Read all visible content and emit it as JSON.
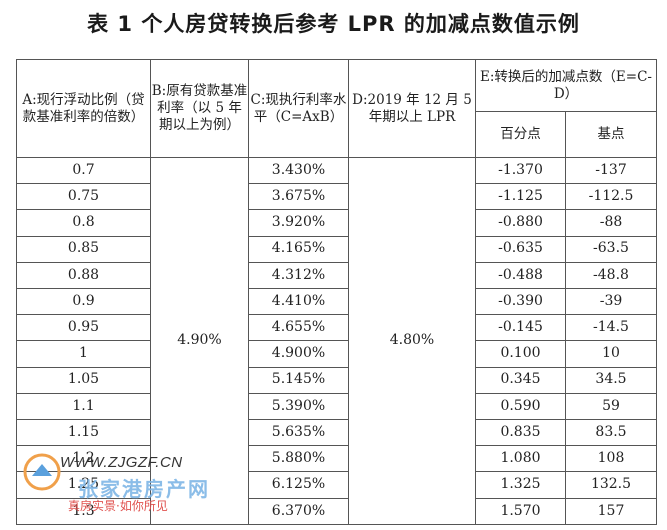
{
  "title": "表 1  个人房贷转换后参考 LPR 的加减点数值示例",
  "headers": {
    "a": "A:现行浮动比例（贷款基准利率的倍数）",
    "b": "B:原有贷款基准利率（以 5 年期以上为例）",
    "c": "C:现执行利率水平（C=AxB）",
    "d": "D:2019 年 12 月 5 年期以上 LPR",
    "e": "E:转换后的加减点数（E=C-D）",
    "e_pct": "百分点",
    "e_bp": "基点"
  },
  "base_rate": "4.90%",
  "lpr": "4.80%",
  "rows": [
    {
      "a": "0.7",
      "c": "3.430%",
      "pct": "-1.370",
      "bp": "-137"
    },
    {
      "a": "0.75",
      "c": "3.675%",
      "pct": "-1.125",
      "bp": "-112.5"
    },
    {
      "a": "0.8",
      "c": "3.920%",
      "pct": "-0.880",
      "bp": "-88"
    },
    {
      "a": "0.85",
      "c": "4.165%",
      "pct": "-0.635",
      "bp": "-63.5"
    },
    {
      "a": "0.88",
      "c": "4.312%",
      "pct": "-0.488",
      "bp": "-48.8"
    },
    {
      "a": "0.9",
      "c": "4.410%",
      "pct": "-0.390",
      "bp": "-39"
    },
    {
      "a": "0.95",
      "c": "4.655%",
      "pct": "-0.145",
      "bp": "-14.5"
    },
    {
      "a": "1",
      "c": "4.900%",
      "pct": "0.100",
      "bp": "10"
    },
    {
      "a": "1.05",
      "c": "5.145%",
      "pct": "0.345",
      "bp": "34.5"
    },
    {
      "a": "1.1",
      "c": "5.390%",
      "pct": "0.590",
      "bp": "59"
    },
    {
      "a": "1.15",
      "c": "5.635%",
      "pct": "0.835",
      "bp": "83.5"
    },
    {
      "a": "1.2",
      "c": "5.880%",
      "pct": "1.080",
      "bp": "108"
    },
    {
      "a": "1.25",
      "c": "6.125%",
      "pct": "1.325",
      "bp": "132.5"
    },
    {
      "a": "1.3",
      "c": "6.370%",
      "pct": "1.570",
      "bp": "157"
    }
  ],
  "watermark": {
    "url": "WWW.ZJGZF.CN",
    "name": "张家港房产网",
    "slogan": "真房实景·如你所见"
  }
}
